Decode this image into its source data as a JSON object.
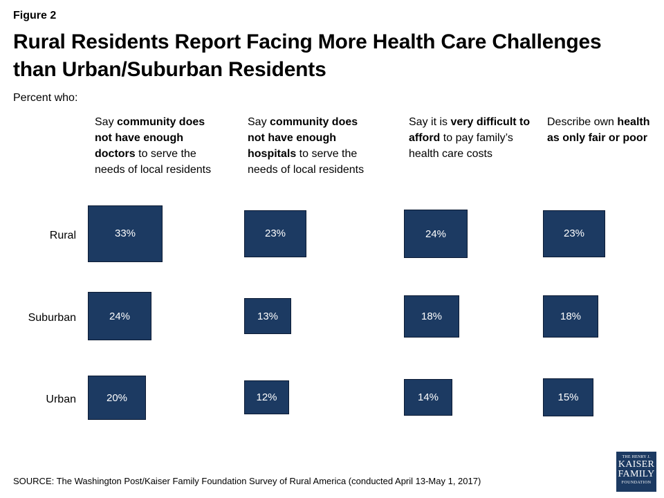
{
  "figure_label": "Figure 2",
  "title": "Rural Residents Report Facing More Health Care Challenges than Urban/Suburban Residents",
  "subtitle": "Percent who:",
  "source": "SOURCE: The Washington Post/Kaiser Family Foundation Survey of Rural America (conducted April 13-May 1, 2017)",
  "logo": {
    "line1": "THE HENRY J.",
    "line2": "KAISER",
    "line3": "FAMILY",
    "line4": "FOUNDATION"
  },
  "colors": {
    "box_fill": "#1c3a62",
    "box_text": "#ffffff"
  },
  "chart_data": {
    "type": "table",
    "title": "Rural Residents Report Facing More Health Care Challenges than Urban/Suburban Residents",
    "subtitle": "Percent who:",
    "categories": [
      "Rural",
      "Suburban",
      "Urban"
    ],
    "max_value": 33,
    "columns": [
      {
        "header": [
          {
            "text": "Say ",
            "bold": false
          },
          {
            "text": "community does not have enough doctors",
            "bold": true
          },
          {
            "text": " to serve the needs of local residents",
            "bold": false
          }
        ],
        "values": [
          33,
          24,
          20
        ],
        "labels": [
          "33%",
          "24%",
          "20%"
        ]
      },
      {
        "header": [
          {
            "text": "Say ",
            "bold": false
          },
          {
            "text": "community does not have enough hospitals",
            "bold": true
          },
          {
            "text": " to serve the needs of local residents",
            "bold": false
          }
        ],
        "values": [
          23,
          13,
          12
        ],
        "labels": [
          "23%",
          "13%",
          "12%"
        ]
      },
      {
        "header": [
          {
            "text": "Say it is ",
            "bold": false
          },
          {
            "text": "very difficult to afford",
            "bold": true
          },
          {
            "text": " to pay family’s health care costs",
            "bold": false
          }
        ],
        "values": [
          24,
          18,
          14
        ],
        "labels": [
          "24%",
          "18%",
          "14%"
        ]
      },
      {
        "header": [
          {
            "text": "Describe own ",
            "bold": false
          },
          {
            "text": "health as only fair or poor",
            "bold": true
          }
        ],
        "values": [
          23,
          18,
          15
        ],
        "labels": [
          "23%",
          "18%",
          "15%"
        ]
      }
    ]
  }
}
